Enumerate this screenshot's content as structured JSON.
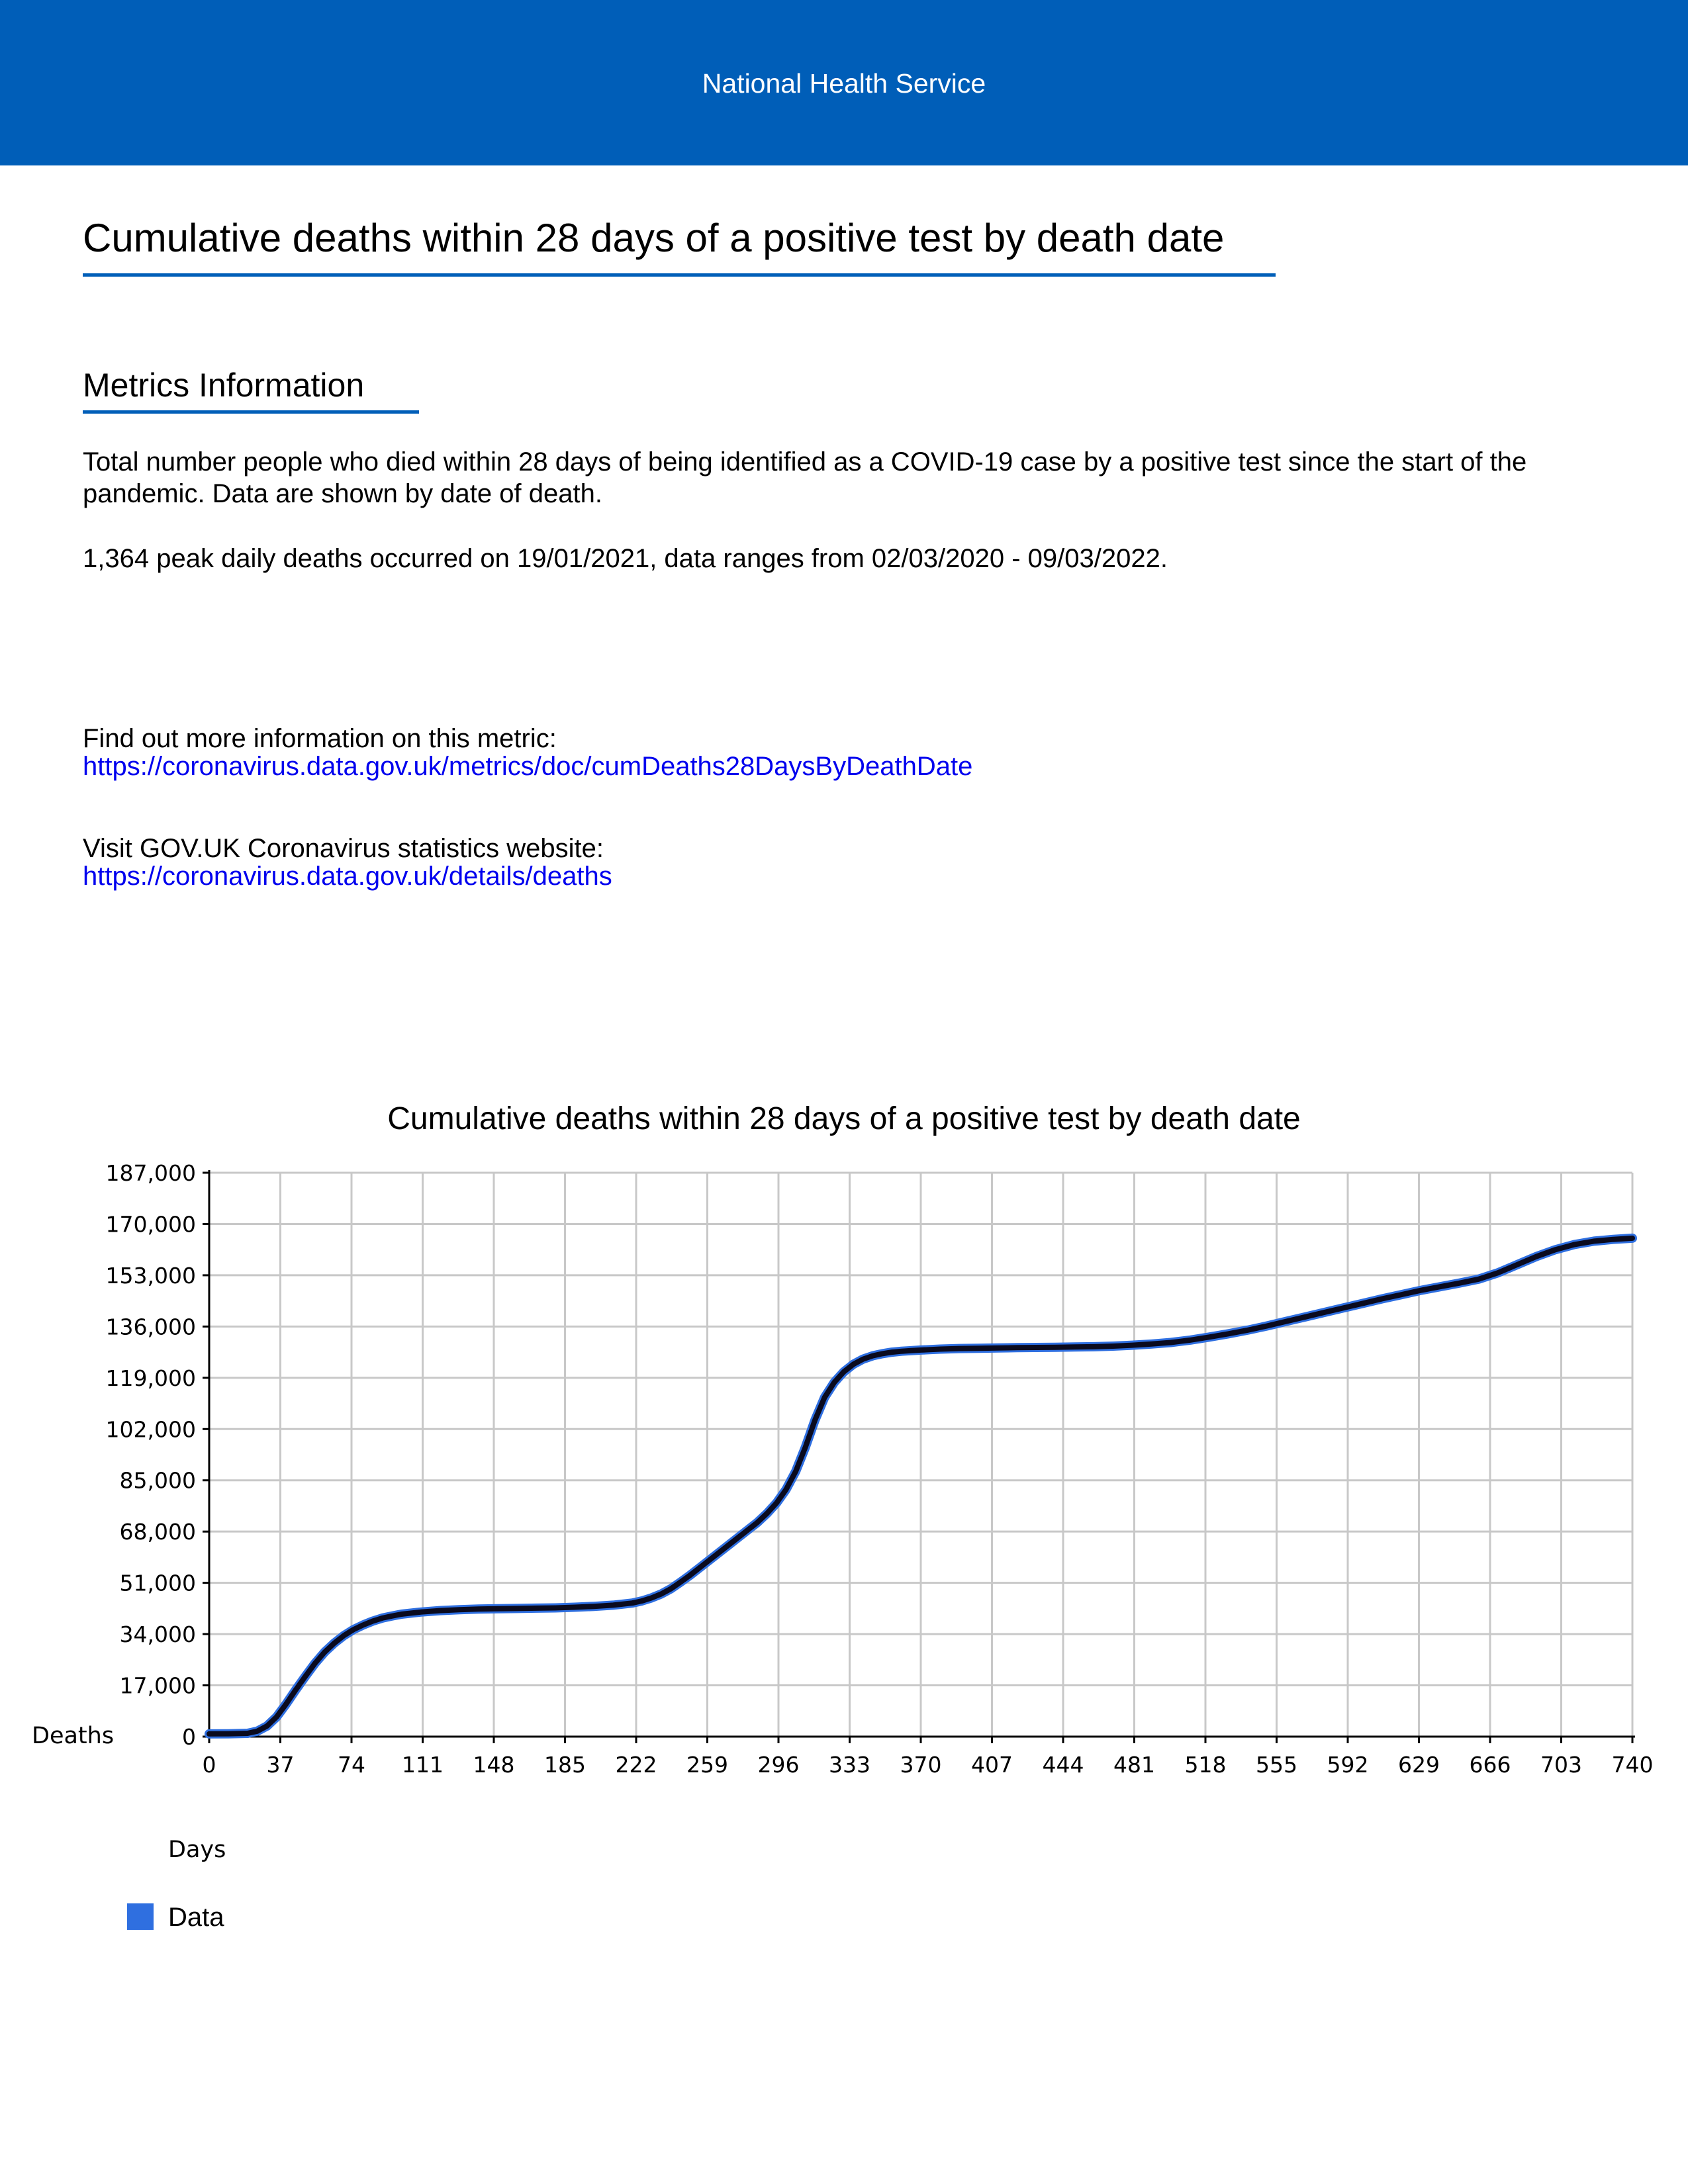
{
  "header": {
    "title": "National Health Service"
  },
  "page": {
    "title": "Cumulative deaths within 28 days of a positive test by death date"
  },
  "metrics": {
    "heading": "Metrics Information",
    "description": "Total number people who died within 28 days of being identified as a COVID-19 case by a positive test since the start of the pandemic. Data are shown by date of death.",
    "summary": "1,364 peak daily deaths occurred on 19/01/2021, data ranges from 02/03/2020 - 09/03/2022."
  },
  "links": {
    "metric_label": "Find out more information on this metric:",
    "metric_url": "https://coronavirus.data.gov.uk/metrics/doc/cumDeaths28DaysByDeathDate",
    "website_label": "Visit GOV.UK Coronavirus statistics website:",
    "website_url": "https://coronavirus.data.gov.uk/details/deaths"
  },
  "colors": {
    "banner": "#005eb8",
    "series": "#2f6fe0",
    "line_dark": "#0a0a1e",
    "grid": "#c8c8c8"
  },
  "chart_data": {
    "type": "line",
    "title": "Cumulative deaths within 28 days of a positive test by death date",
    "xlabel": "Days",
    "ylabel": "Deaths",
    "xlim": [
      0,
      740
    ],
    "ylim": [
      0,
      187000
    ],
    "x_ticks": [
      0,
      37,
      74,
      111,
      148,
      185,
      222,
      259,
      296,
      333,
      370,
      407,
      444,
      481,
      518,
      555,
      592,
      629,
      666,
      703,
      740
    ],
    "y_ticks": [
      0,
      17000,
      34000,
      51000,
      68000,
      85000,
      102000,
      119000,
      136000,
      153000,
      170000,
      187000
    ],
    "x_tick_labels": [
      "0",
      "37",
      "74",
      "111",
      "148",
      "185",
      "222",
      "259",
      "296",
      "333",
      "370",
      "407",
      "444",
      "481",
      "518",
      "555",
      "592",
      "629",
      "666",
      "703",
      "740"
    ],
    "y_tick_labels": [
      "0",
      "17,000",
      "34,000",
      "51,000",
      "68,000",
      "85,000",
      "102,000",
      "119,000",
      "136,000",
      "153,000",
      "170,000",
      "187,000"
    ],
    "grid": true,
    "legend": "bottom-left",
    "series": [
      {
        "name": "Data",
        "x": [
          0,
          10,
          20,
          25,
          30,
          35,
          40,
          45,
          50,
          55,
          60,
          65,
          70,
          75,
          80,
          85,
          90,
          95,
          100,
          110,
          120,
          130,
          140,
          150,
          160,
          170,
          180,
          190,
          200,
          210,
          220,
          225,
          230,
          235,
          240,
          245,
          250,
          255,
          260,
          265,
          270,
          275,
          280,
          285,
          290,
          295,
          300,
          305,
          310,
          315,
          320,
          325,
          330,
          335,
          340,
          345,
          350,
          355,
          360,
          365,
          370,
          380,
          390,
          400,
          410,
          420,
          430,
          440,
          450,
          460,
          470,
          480,
          490,
          500,
          510,
          520,
          530,
          540,
          550,
          560,
          570,
          580,
          590,
          600,
          610,
          620,
          630,
          640,
          650,
          660,
          670,
          680,
          690,
          700,
          710,
          720,
          730,
          740
        ],
        "y": [
          900,
          950,
          1100,
          1800,
          3500,
          6500,
          10800,
          15500,
          20000,
          24300,
          28000,
          31000,
          33500,
          35500,
          37000,
          38300,
          39300,
          40000,
          40600,
          41300,
          41800,
          42100,
          42300,
          42400,
          42500,
          42600,
          42700,
          42900,
          43200,
          43600,
          44300,
          45000,
          46000,
          47300,
          49000,
          51200,
          53500,
          56000,
          58500,
          61000,
          63500,
          66000,
          68500,
          71000,
          74000,
          77500,
          82000,
          88000,
          96000,
          105000,
          112500,
          117500,
          121000,
          123500,
          125200,
          126300,
          127000,
          127500,
          127800,
          128000,
          128200,
          128500,
          128700,
          128800,
          128900,
          129000,
          129050,
          129100,
          129200,
          129300,
          129500,
          129800,
          130200,
          130700,
          131500,
          132500,
          133600,
          134800,
          136200,
          137700,
          139200,
          140700,
          142200,
          143700,
          145200,
          146600,
          148000,
          149200,
          150400,
          151700,
          153800,
          156500,
          159200,
          161500,
          163200,
          164300,
          164900,
          165300
        ]
      }
    ]
  }
}
